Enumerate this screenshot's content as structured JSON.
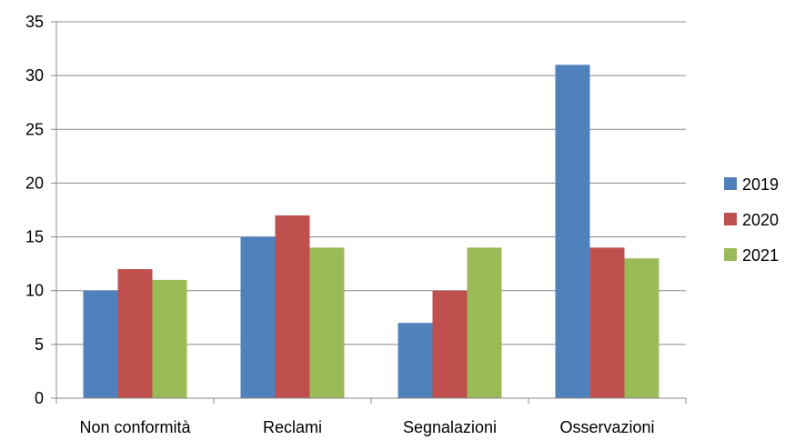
{
  "chart_data": {
    "type": "bar",
    "title": "",
    "xlabel": "",
    "ylabel": "",
    "categories": [
      "Non conformità",
      "Reclami",
      "Segnalazioni",
      "Osservazioni"
    ],
    "series": [
      {
        "name": "2019",
        "color": "#4F81BD",
        "values": [
          10,
          15,
          7,
          31
        ]
      },
      {
        "name": "2020",
        "color": "#C0504D",
        "values": [
          12,
          17,
          10,
          14
        ]
      },
      {
        "name": "2021",
        "color": "#9BBB59",
        "values": [
          11,
          14,
          14,
          13
        ]
      }
    ],
    "ylim": [
      0,
      35
    ],
    "yticks": [
      0,
      5,
      10,
      15,
      20,
      25,
      30,
      35
    ],
    "grid": true,
    "legend_position": "right"
  }
}
